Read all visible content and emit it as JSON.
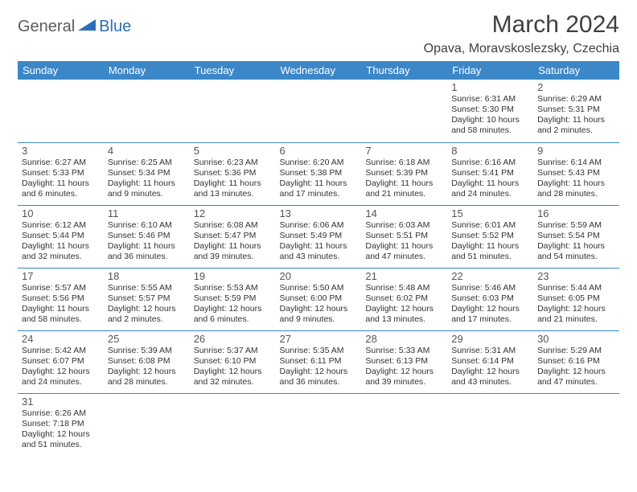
{
  "logo": {
    "text_general": "General",
    "text_blue": "Blue",
    "shape_color": "#2d6fb7",
    "gray_color": "#5b5b5b"
  },
  "title": "March 2024",
  "location": "Opava, Moravskoslezsky, Czechia",
  "header_bg": "#3b87c8",
  "header_fg": "#ffffff",
  "border_color": "#3b87c8",
  "weekdays": [
    "Sunday",
    "Monday",
    "Tuesday",
    "Wednesday",
    "Thursday",
    "Friday",
    "Saturday"
  ],
  "weeks": [
    [
      null,
      null,
      null,
      null,
      null,
      {
        "day": "1",
        "sunrise": "Sunrise: 6:31 AM",
        "sunset": "Sunset: 5:30 PM",
        "daylight": "Daylight: 10 hours and 58 minutes."
      },
      {
        "day": "2",
        "sunrise": "Sunrise: 6:29 AM",
        "sunset": "Sunset: 5:31 PM",
        "daylight": "Daylight: 11 hours and 2 minutes."
      }
    ],
    [
      {
        "day": "3",
        "sunrise": "Sunrise: 6:27 AM",
        "sunset": "Sunset: 5:33 PM",
        "daylight": "Daylight: 11 hours and 6 minutes."
      },
      {
        "day": "4",
        "sunrise": "Sunrise: 6:25 AM",
        "sunset": "Sunset: 5:34 PM",
        "daylight": "Daylight: 11 hours and 9 minutes."
      },
      {
        "day": "5",
        "sunrise": "Sunrise: 6:23 AM",
        "sunset": "Sunset: 5:36 PM",
        "daylight": "Daylight: 11 hours and 13 minutes."
      },
      {
        "day": "6",
        "sunrise": "Sunrise: 6:20 AM",
        "sunset": "Sunset: 5:38 PM",
        "daylight": "Daylight: 11 hours and 17 minutes."
      },
      {
        "day": "7",
        "sunrise": "Sunrise: 6:18 AM",
        "sunset": "Sunset: 5:39 PM",
        "daylight": "Daylight: 11 hours and 21 minutes."
      },
      {
        "day": "8",
        "sunrise": "Sunrise: 6:16 AM",
        "sunset": "Sunset: 5:41 PM",
        "daylight": "Daylight: 11 hours and 24 minutes."
      },
      {
        "day": "9",
        "sunrise": "Sunrise: 6:14 AM",
        "sunset": "Sunset: 5:43 PM",
        "daylight": "Daylight: 11 hours and 28 minutes."
      }
    ],
    [
      {
        "day": "10",
        "sunrise": "Sunrise: 6:12 AM",
        "sunset": "Sunset: 5:44 PM",
        "daylight": "Daylight: 11 hours and 32 minutes."
      },
      {
        "day": "11",
        "sunrise": "Sunrise: 6:10 AM",
        "sunset": "Sunset: 5:46 PM",
        "daylight": "Daylight: 11 hours and 36 minutes."
      },
      {
        "day": "12",
        "sunrise": "Sunrise: 6:08 AM",
        "sunset": "Sunset: 5:47 PM",
        "daylight": "Daylight: 11 hours and 39 minutes."
      },
      {
        "day": "13",
        "sunrise": "Sunrise: 6:06 AM",
        "sunset": "Sunset: 5:49 PM",
        "daylight": "Daylight: 11 hours and 43 minutes."
      },
      {
        "day": "14",
        "sunrise": "Sunrise: 6:03 AM",
        "sunset": "Sunset: 5:51 PM",
        "daylight": "Daylight: 11 hours and 47 minutes."
      },
      {
        "day": "15",
        "sunrise": "Sunrise: 6:01 AM",
        "sunset": "Sunset: 5:52 PM",
        "daylight": "Daylight: 11 hours and 51 minutes."
      },
      {
        "day": "16",
        "sunrise": "Sunrise: 5:59 AM",
        "sunset": "Sunset: 5:54 PM",
        "daylight": "Daylight: 11 hours and 54 minutes."
      }
    ],
    [
      {
        "day": "17",
        "sunrise": "Sunrise: 5:57 AM",
        "sunset": "Sunset: 5:56 PM",
        "daylight": "Daylight: 11 hours and 58 minutes."
      },
      {
        "day": "18",
        "sunrise": "Sunrise: 5:55 AM",
        "sunset": "Sunset: 5:57 PM",
        "daylight": "Daylight: 12 hours and 2 minutes."
      },
      {
        "day": "19",
        "sunrise": "Sunrise: 5:53 AM",
        "sunset": "Sunset: 5:59 PM",
        "daylight": "Daylight: 12 hours and 6 minutes."
      },
      {
        "day": "20",
        "sunrise": "Sunrise: 5:50 AM",
        "sunset": "Sunset: 6:00 PM",
        "daylight": "Daylight: 12 hours and 9 minutes."
      },
      {
        "day": "21",
        "sunrise": "Sunrise: 5:48 AM",
        "sunset": "Sunset: 6:02 PM",
        "daylight": "Daylight: 12 hours and 13 minutes."
      },
      {
        "day": "22",
        "sunrise": "Sunrise: 5:46 AM",
        "sunset": "Sunset: 6:03 PM",
        "daylight": "Daylight: 12 hours and 17 minutes."
      },
      {
        "day": "23",
        "sunrise": "Sunrise: 5:44 AM",
        "sunset": "Sunset: 6:05 PM",
        "daylight": "Daylight: 12 hours and 21 minutes."
      }
    ],
    [
      {
        "day": "24",
        "sunrise": "Sunrise: 5:42 AM",
        "sunset": "Sunset: 6:07 PM",
        "daylight": "Daylight: 12 hours and 24 minutes."
      },
      {
        "day": "25",
        "sunrise": "Sunrise: 5:39 AM",
        "sunset": "Sunset: 6:08 PM",
        "daylight": "Daylight: 12 hours and 28 minutes."
      },
      {
        "day": "26",
        "sunrise": "Sunrise: 5:37 AM",
        "sunset": "Sunset: 6:10 PM",
        "daylight": "Daylight: 12 hours and 32 minutes."
      },
      {
        "day": "27",
        "sunrise": "Sunrise: 5:35 AM",
        "sunset": "Sunset: 6:11 PM",
        "daylight": "Daylight: 12 hours and 36 minutes."
      },
      {
        "day": "28",
        "sunrise": "Sunrise: 5:33 AM",
        "sunset": "Sunset: 6:13 PM",
        "daylight": "Daylight: 12 hours and 39 minutes."
      },
      {
        "day": "29",
        "sunrise": "Sunrise: 5:31 AM",
        "sunset": "Sunset: 6:14 PM",
        "daylight": "Daylight: 12 hours and 43 minutes."
      },
      {
        "day": "30",
        "sunrise": "Sunrise: 5:29 AM",
        "sunset": "Sunset: 6:16 PM",
        "daylight": "Daylight: 12 hours and 47 minutes."
      }
    ],
    [
      {
        "day": "31",
        "sunrise": "Sunrise: 6:26 AM",
        "sunset": "Sunset: 7:18 PM",
        "daylight": "Daylight: 12 hours and 51 minutes."
      },
      null,
      null,
      null,
      null,
      null,
      null
    ]
  ]
}
